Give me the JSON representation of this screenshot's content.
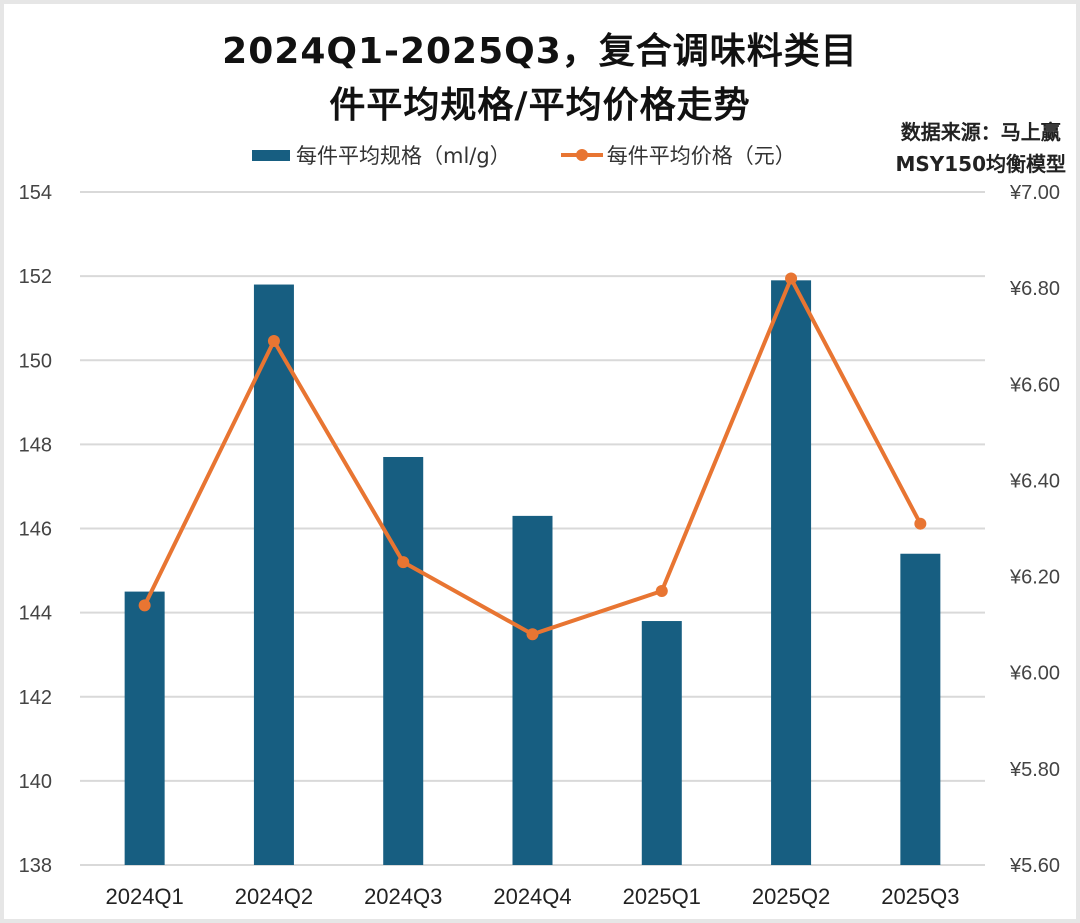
{
  "title": {
    "line1": "2024Q1-2025Q3，复合调味料类目",
    "line2": "件平均规格/平均价格走势"
  },
  "source": {
    "line1": "数据来源：马上赢",
    "line2": "MSY150均衡模型"
  },
  "legend": {
    "bar_label": "每件平均规格（ml/g）",
    "line_label": "每件平均价格（元）"
  },
  "colors": {
    "bar": "#175e81",
    "line": "#e87532",
    "grid": "#d9d9d9"
  },
  "chart_data": {
    "type": "bar+line",
    "title": "2024Q1-2025Q3，复合调味料类目件平均规格/平均价格走势",
    "categories": [
      "2024Q1",
      "2024Q2",
      "2024Q3",
      "2024Q4",
      "2025Q1",
      "2025Q2",
      "2025Q3"
    ],
    "series": [
      {
        "name": "每件平均规格（ml/g）",
        "type": "bar",
        "axis": "left",
        "values": [
          144.5,
          151.8,
          147.7,
          146.3,
          143.8,
          151.9,
          145.4
        ]
      },
      {
        "name": "每件平均价格（元）",
        "type": "line",
        "axis": "right",
        "values": [
          6.14,
          6.69,
          6.23,
          6.08,
          6.17,
          6.82,
          6.31
        ]
      }
    ],
    "left_axis": {
      "ylim": [
        138,
        154
      ],
      "ticks": [
        "138",
        "140",
        "142",
        "144",
        "146",
        "148",
        "150",
        "152",
        "154"
      ]
    },
    "right_axis": {
      "ylim": [
        5.6,
        7.0
      ],
      "ticks": [
        "¥5.60",
        "¥5.80",
        "¥6.00",
        "¥6.20",
        "¥6.40",
        "¥6.60",
        "¥6.80",
        "¥7.00"
      ]
    },
    "grid": true,
    "legend_position": "top"
  }
}
